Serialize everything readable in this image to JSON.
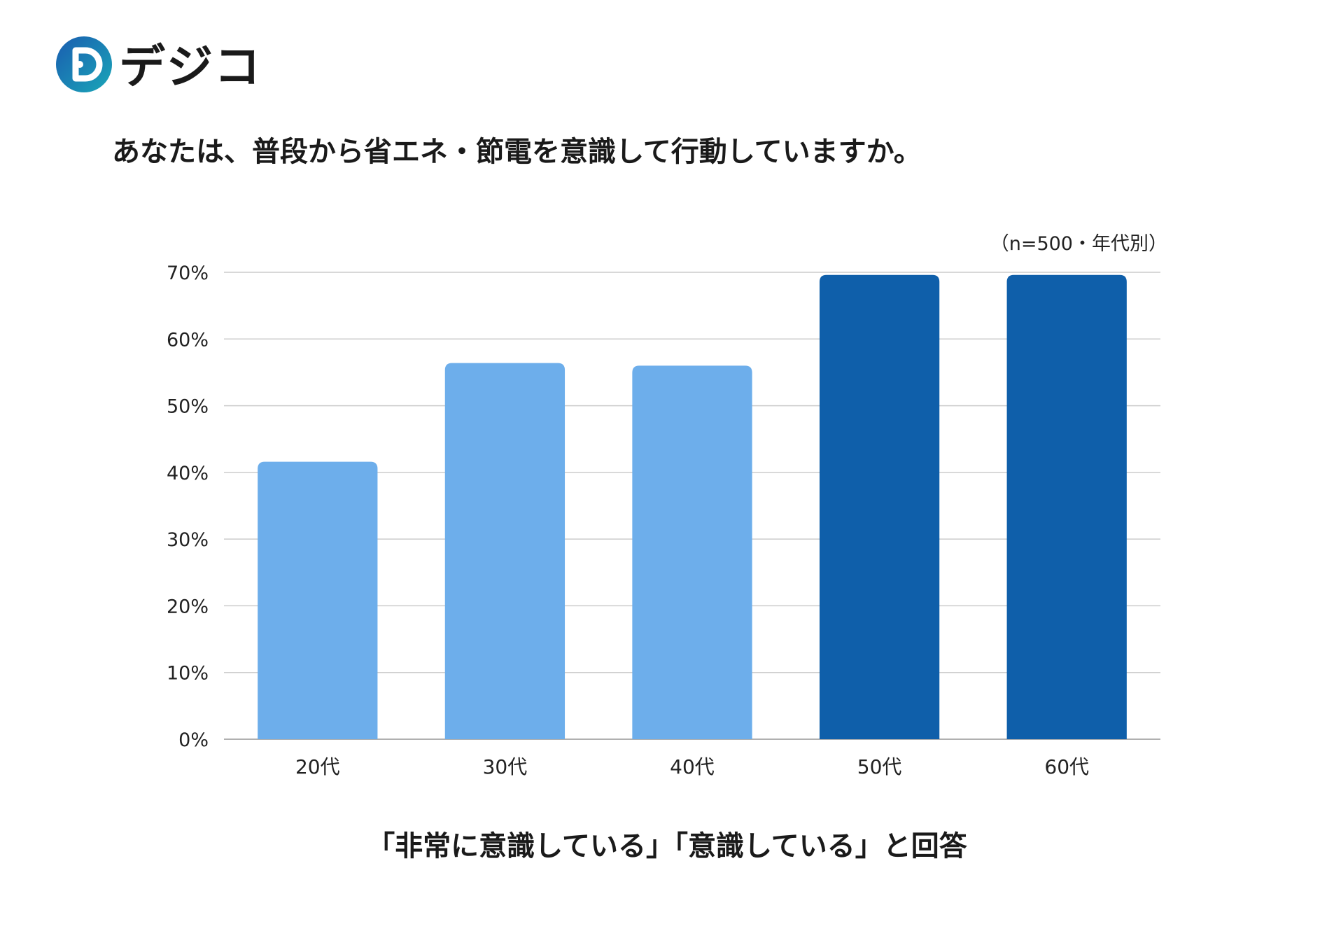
{
  "logo": {
    "text": "デジコ",
    "gradient_start": "#1a5cb0",
    "gradient_end": "#1aa7b8",
    "dot_color": "#1aa7b8"
  },
  "title": "あなたは、普段から省エネ・節電を意識して行動していますか。",
  "sample_note": "（n=500・年代別）",
  "caption": "「非常に意識している」「意識している」と回答",
  "chart_data": {
    "type": "bar",
    "categories": [
      "20代",
      "30代",
      "40代",
      "50代",
      "60代"
    ],
    "values": [
      41.6,
      56.4,
      56.0,
      69.6,
      69.6
    ],
    "colors": [
      "#6daeeb",
      "#6daeeb",
      "#6daeeb",
      "#0f5faa",
      "#0f5faa"
    ],
    "ylim": [
      0,
      70
    ],
    "yticks": [
      0,
      10,
      20,
      30,
      40,
      50,
      60,
      70
    ],
    "ytick_suffix": "%",
    "grid": true,
    "gridline_color": "#cccccc"
  }
}
